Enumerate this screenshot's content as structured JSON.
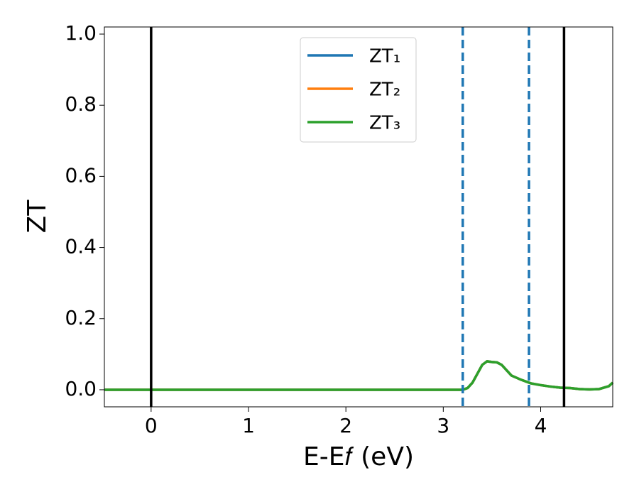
{
  "chart_data": {
    "type": "line",
    "xlabel": "E-E𝑓 (eV)",
    "ylabel": "ZT",
    "xlim": [
      -0.48,
      4.74
    ],
    "ylim": [
      -0.048,
      1.02
    ],
    "xticks": [
      0,
      1,
      2,
      3,
      4
    ],
    "yticks": [
      {
        "value": 0,
        "label": "0.0"
      },
      0.2,
      0.4,
      0.6,
      0.8,
      {
        "value": 1,
        "label": "1.0"
      }
    ],
    "x": [
      -0.48,
      0,
      1,
      2,
      3,
      3.2,
      3.25,
      3.3,
      3.35,
      3.4,
      3.45,
      3.5,
      3.55,
      3.6,
      3.65,
      3.7,
      3.8,
      3.9,
      4.0,
      4.1,
      4.2,
      4.3,
      4.4,
      4.5,
      4.6,
      4.7,
      4.74
    ],
    "series": [
      {
        "name": "ZT₁",
        "color": "#1f77b4",
        "values": [
          0,
          0,
          0,
          0,
          0,
          0,
          0.005,
          0.02,
          0.045,
          0.07,
          0.08,
          0.078,
          0.077,
          0.07,
          0.055,
          0.04,
          0.028,
          0.018,
          0.013,
          0.009,
          0.006,
          0.005,
          0.002,
          0.001,
          0.002,
          0.01,
          0.02
        ]
      },
      {
        "name": "ZT₂",
        "color": "#ff7f0e",
        "values": [
          0,
          0,
          0,
          0,
          0,
          0,
          0.005,
          0.02,
          0.045,
          0.07,
          0.08,
          0.078,
          0.077,
          0.07,
          0.055,
          0.04,
          0.028,
          0.018,
          0.013,
          0.009,
          0.006,
          0.005,
          0.002,
          0.001,
          0.002,
          0.01,
          0.02
        ]
      },
      {
        "name": "ZT₃",
        "color": "#2ca02c",
        "values": [
          0,
          0,
          0,
          0,
          0,
          0,
          0.005,
          0.02,
          0.045,
          0.07,
          0.08,
          0.078,
          0.077,
          0.07,
          0.055,
          0.04,
          0.028,
          0.018,
          0.013,
          0.009,
          0.006,
          0.005,
          0.002,
          0.001,
          0.002,
          0.01,
          0.02
        ]
      }
    ],
    "vlines": [
      {
        "x": 0,
        "color": "#000000",
        "style": "solid"
      },
      {
        "x": 4.24,
        "color": "#000000",
        "style": "solid"
      },
      {
        "x": 3.2,
        "color": "#1f77b4",
        "style": "dashed"
      },
      {
        "x": 3.88,
        "color": "#1f77b4",
        "style": "dashed"
      }
    ],
    "legend": "upper center",
    "grid": false
  }
}
